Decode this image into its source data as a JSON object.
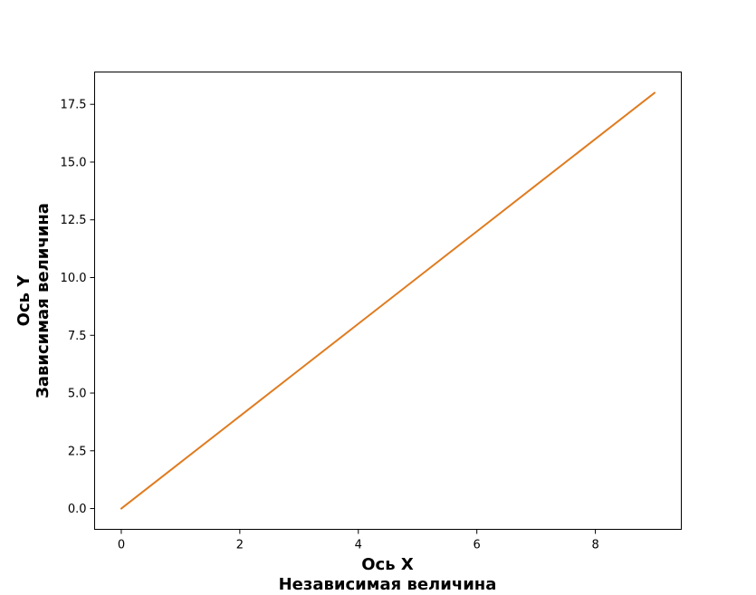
{
  "chart_data": {
    "type": "line",
    "title": "",
    "xlabel_line1": "Ось X",
    "xlabel_line2": "Независимая величина",
    "ylabel_line1": "Ось Y",
    "ylabel_line2": "Зависимая величина",
    "xlim": [
      -0.45,
      9.45
    ],
    "ylim": [
      -0.9,
      18.9
    ],
    "x_ticks": [
      0,
      2,
      4,
      6,
      8
    ],
    "x_tick_labels": [
      "0",
      "2",
      "4",
      "6",
      "8"
    ],
    "y_ticks": [
      0,
      2.5,
      5,
      7.5,
      10,
      12.5,
      15,
      17.5
    ],
    "y_tick_labels": [
      "0.0",
      "2.5",
      "5.0",
      "7.5",
      "10.0",
      "12.5",
      "15.0",
      "17.5"
    ],
    "grid": false,
    "series": [
      {
        "color": "#e07b1f",
        "x": [
          0,
          1,
          2,
          3,
          4,
          5,
          6,
          7,
          8,
          9
        ],
        "y": [
          0,
          2,
          4,
          6,
          8,
          10,
          12,
          14,
          16,
          18
        ]
      }
    ]
  }
}
